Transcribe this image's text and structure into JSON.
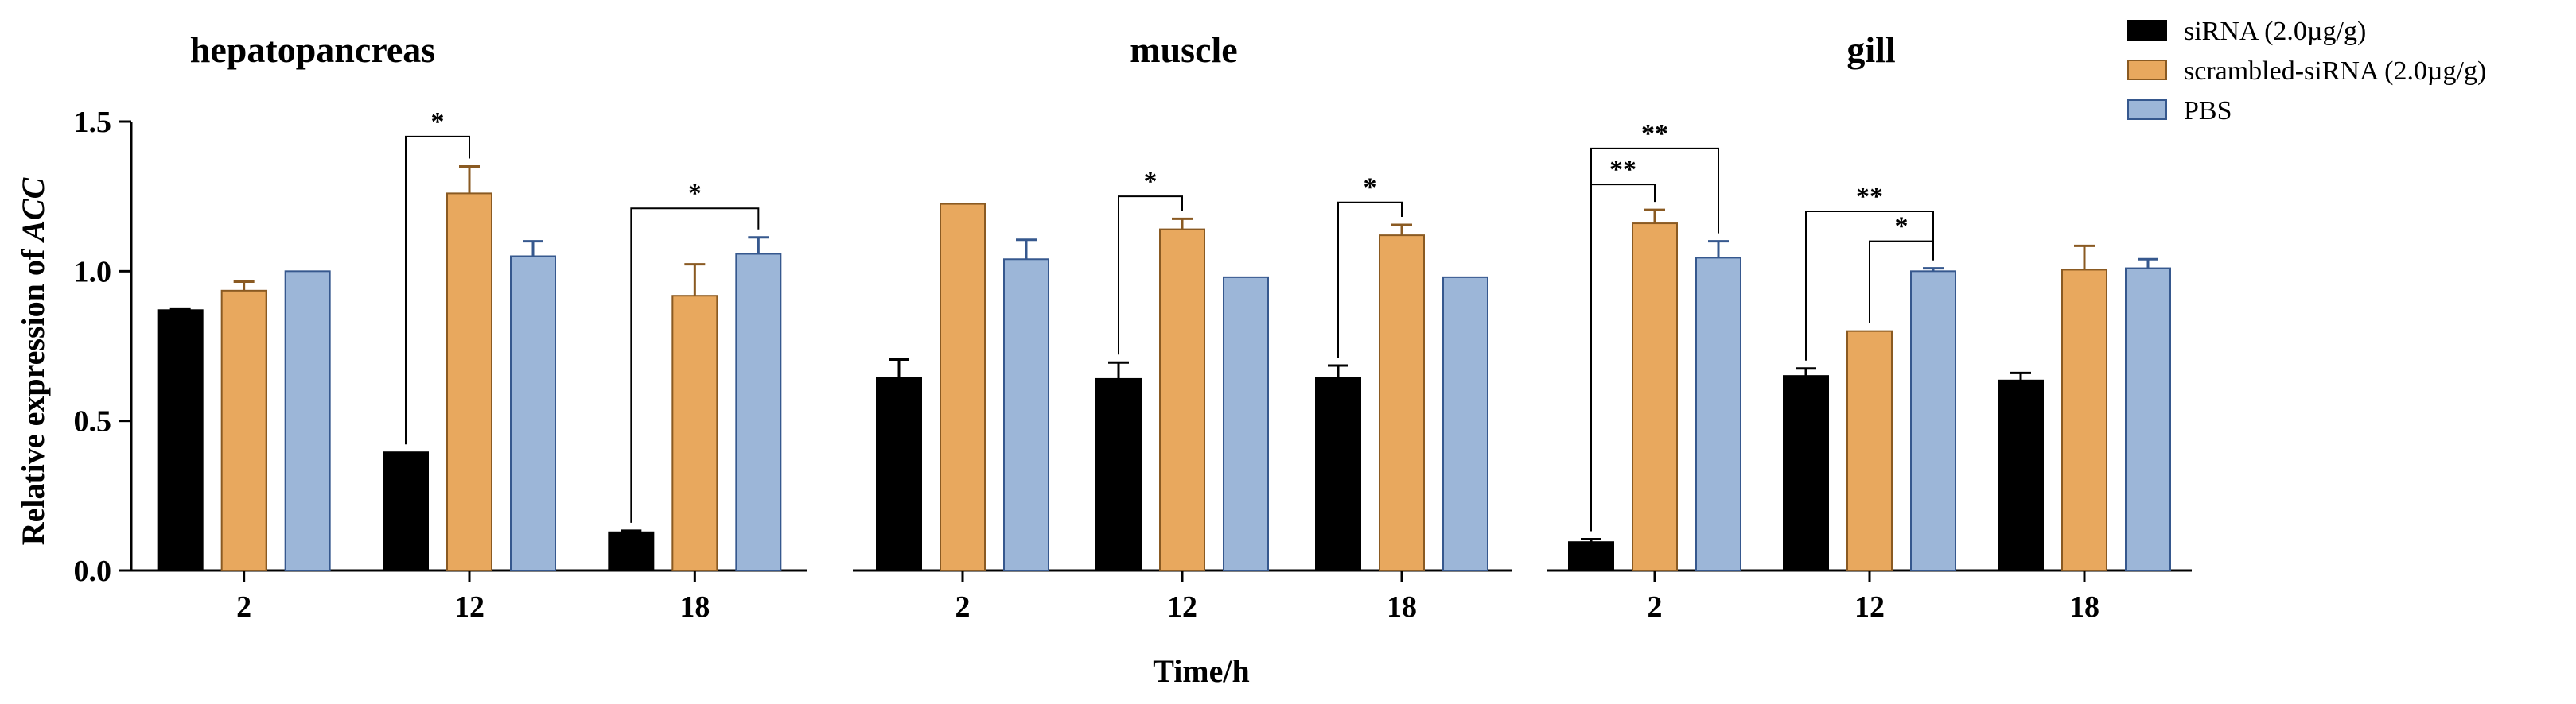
{
  "chart_data": {
    "type": "bar",
    "ylabel_prefix": "Relative expression of ",
    "ylabel_gene": "ACC",
    "xlabel": "Time/h",
    "ylim": [
      0,
      1.5
    ],
    "yticks": [
      "0.0",
      "0.5",
      "1.0",
      "1.5"
    ],
    "categories": [
      "2",
      "12",
      "18"
    ],
    "series_names": [
      "siRNA (2.0µg/g)",
      "scrambled-siRNA (2.0µg/g)",
      "PBS"
    ],
    "colors": {
      "siRNA": "#000000",
      "scrambled": "#E8A85E",
      "scrambled_stroke": "#8A5A22",
      "pbs": "#9CB6D8",
      "pbs_stroke": "#36588E"
    },
    "panels": [
      {
        "title": "hepatopancreas",
        "values": [
          [
            0.87,
            0.935,
            1.0
          ],
          [
            0.395,
            1.26,
            1.05
          ],
          [
            0.128,
            0.918,
            1.058
          ]
        ],
        "errors": [
          [
            0.005,
            0.03,
            0.0
          ],
          [
            0.0,
            0.09,
            0.05
          ],
          [
            0.005,
            0.105,
            0.055
          ]
        ],
        "significance": [
          {
            "group": 1,
            "from": 0,
            "to": 1,
            "label": "*",
            "level": 1.45
          },
          {
            "group": 2,
            "from": 0,
            "to": 2,
            "label": "*",
            "level": 1.21
          }
        ]
      },
      {
        "title": "muscle",
        "values": [
          [
            0.645,
            1.225,
            1.04
          ],
          [
            0.64,
            1.14,
            0.98
          ],
          [
            0.645,
            1.12,
            0.98
          ]
        ],
        "errors": [
          [
            0.06,
            0.0,
            0.065
          ],
          [
            0.055,
            0.035,
            0.0
          ],
          [
            0.04,
            0.035,
            0.0
          ]
        ],
        "significance": [
          {
            "group": 1,
            "from": 0,
            "to": 1,
            "label": "*",
            "level": 1.25
          },
          {
            "group": 2,
            "from": 0,
            "to": 1,
            "label": "*",
            "level": 1.23
          }
        ]
      },
      {
        "title": "gill",
        "values": [
          [
            0.095,
            1.16,
            1.045
          ],
          [
            0.65,
            0.8,
            1.0
          ],
          [
            0.635,
            1.005,
            1.01
          ]
        ],
        "errors": [
          [
            0.01,
            0.045,
            0.055
          ],
          [
            0.025,
            0.0,
            0.01
          ],
          [
            0.025,
            0.08,
            0.03
          ]
        ],
        "significance": [
          {
            "group": 0,
            "from": 0,
            "to": 2,
            "label": "**",
            "level": 1.41
          },
          {
            "group": 0,
            "from": 0,
            "to": 1,
            "label": "**",
            "level": 1.29
          },
          {
            "group": 1,
            "from": 0,
            "to": 2,
            "label": "**",
            "level": 1.2
          },
          {
            "group": 1,
            "from": 1,
            "to": 2,
            "label": "*",
            "level": 1.1
          }
        ]
      }
    ],
    "legend_position": "top-right"
  }
}
